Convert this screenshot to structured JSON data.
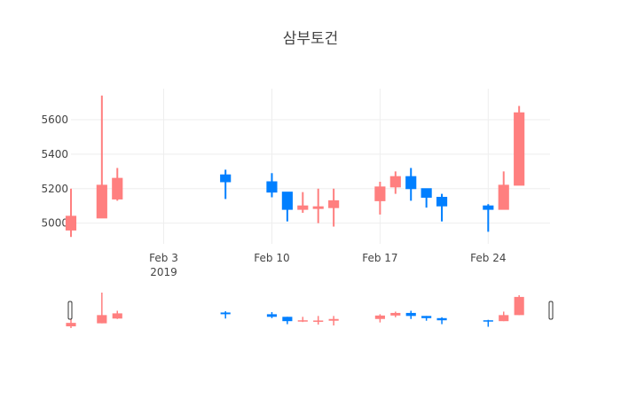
{
  "chart_data": {
    "type": "candlestick",
    "title": "삼부토건",
    "xlabel": "",
    "ylabel": "",
    "ylim": [
      4880,
      5780
    ],
    "yticks": [
      5000,
      5200,
      5400,
      5600
    ],
    "x_range": [
      "2019-01-28",
      "2019-02-28"
    ],
    "xticks": [
      {
        "date": "2019-02-03",
        "label": "Feb 3",
        "sublabel": "2019"
      },
      {
        "date": "2019-02-10",
        "label": "Feb 10",
        "sublabel": ""
      },
      {
        "date": "2019-02-17",
        "label": "Feb 17",
        "sublabel": ""
      },
      {
        "date": "2019-02-24",
        "label": "Feb 24",
        "sublabel": ""
      }
    ],
    "increasing_color": "#ff7f7f",
    "decreasing_color": "#007fff",
    "grid": true,
    "rangeslider": true,
    "candles": [
      {
        "date": "2019-01-28",
        "open": 4960,
        "high": 5200,
        "low": 4920,
        "close": 5040
      },
      {
        "date": "2019-01-30",
        "open": 5030,
        "high": 5740,
        "low": 5030,
        "close": 5220
      },
      {
        "date": "2019-01-31",
        "open": 5140,
        "high": 5320,
        "low": 5130,
        "close": 5260
      },
      {
        "date": "2019-02-07",
        "open": 5280,
        "high": 5310,
        "low": 5140,
        "close": 5240
      },
      {
        "date": "2019-02-10",
        "open": 5240,
        "high": 5290,
        "low": 5150,
        "close": 5180
      },
      {
        "date": "2019-02-11",
        "open": 5180,
        "high": 5180,
        "low": 5010,
        "close": 5080
      },
      {
        "date": "2019-02-12",
        "open": 5080,
        "high": 5180,
        "low": 5060,
        "close": 5100
      },
      {
        "date": "2019-02-13",
        "open": 5085,
        "high": 5200,
        "low": 5000,
        "close": 5095
      },
      {
        "date": "2019-02-14",
        "open": 5090,
        "high": 5200,
        "low": 4980,
        "close": 5130
      },
      {
        "date": "2019-02-17",
        "open": 5130,
        "high": 5240,
        "low": 5050,
        "close": 5210
      },
      {
        "date": "2019-02-18",
        "open": 5210,
        "high": 5300,
        "low": 5170,
        "close": 5270
      },
      {
        "date": "2019-02-19",
        "open": 5270,
        "high": 5320,
        "low": 5130,
        "close": 5200
      },
      {
        "date": "2019-02-20",
        "open": 5200,
        "high": 5200,
        "low": 5090,
        "close": 5150
      },
      {
        "date": "2019-02-21",
        "open": 5150,
        "high": 5170,
        "low": 5010,
        "close": 5100
      },
      {
        "date": "2019-02-24",
        "open": 5100,
        "high": 5110,
        "low": 4950,
        "close": 5080
      },
      {
        "date": "2019-02-25",
        "open": 5080,
        "high": 5300,
        "low": 5080,
        "close": 5220
      },
      {
        "date": "2019-02-26",
        "open": 5220,
        "high": 5680,
        "low": 5220,
        "close": 5640
      }
    ]
  }
}
